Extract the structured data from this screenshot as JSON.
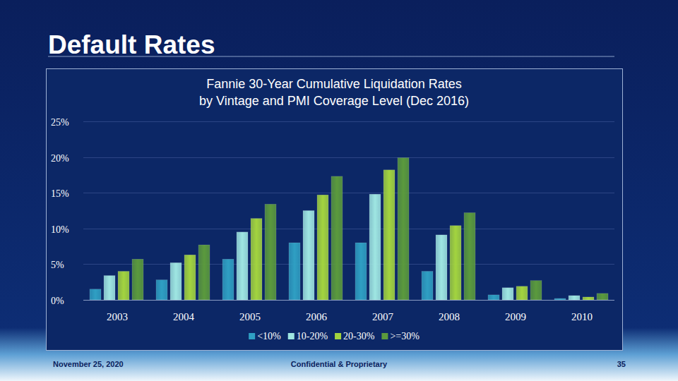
{
  "slide": {
    "title": "Default Rates",
    "date": "November 25, 2020",
    "footer": "Confidential & Proprietary",
    "page": "35"
  },
  "chart_data": {
    "type": "bar",
    "title": "Fannie 30-Year Cumulative Liquidation Rates\nby Vintage and PMI Coverage Level (Dec 2016)",
    "categories": [
      "2003",
      "2004",
      "2005",
      "2006",
      "2007",
      "2008",
      "2009",
      "2010"
    ],
    "series": [
      {
        "name": "<10%",
        "color": "#2f9fc3",
        "values": [
          1.5,
          2.8,
          5.7,
          8.0,
          8.0,
          4.0,
          0.7,
          0.2
        ]
      },
      {
        "name": "10-20%",
        "color": "#9fe6e2",
        "values": [
          3.4,
          5.2,
          9.5,
          12.5,
          14.8,
          9.1,
          1.7,
          0.6
        ]
      },
      {
        "name": "20-30%",
        "color": "#a3d43f",
        "values": [
          4.0,
          6.3,
          11.4,
          14.7,
          18.2,
          10.4,
          1.9,
          0.4
        ]
      },
      {
        "name": ">=30%",
        "color": "#5b9a3d",
        "values": [
          5.7,
          7.7,
          13.4,
          17.3,
          19.9,
          12.2,
          2.7,
          0.9
        ]
      }
    ],
    "ylim": [
      0,
      25
    ],
    "yticks": [
      {
        "value": 0,
        "label": "0%"
      },
      {
        "value": 5,
        "label": "5%"
      },
      {
        "value": 10,
        "label": "10%"
      },
      {
        "value": 15,
        "label": "15%"
      },
      {
        "value": 20,
        "label": "20%"
      },
      {
        "value": 25,
        "label": "25%"
      }
    ],
    "grid": true,
    "legend": "bottom"
  }
}
